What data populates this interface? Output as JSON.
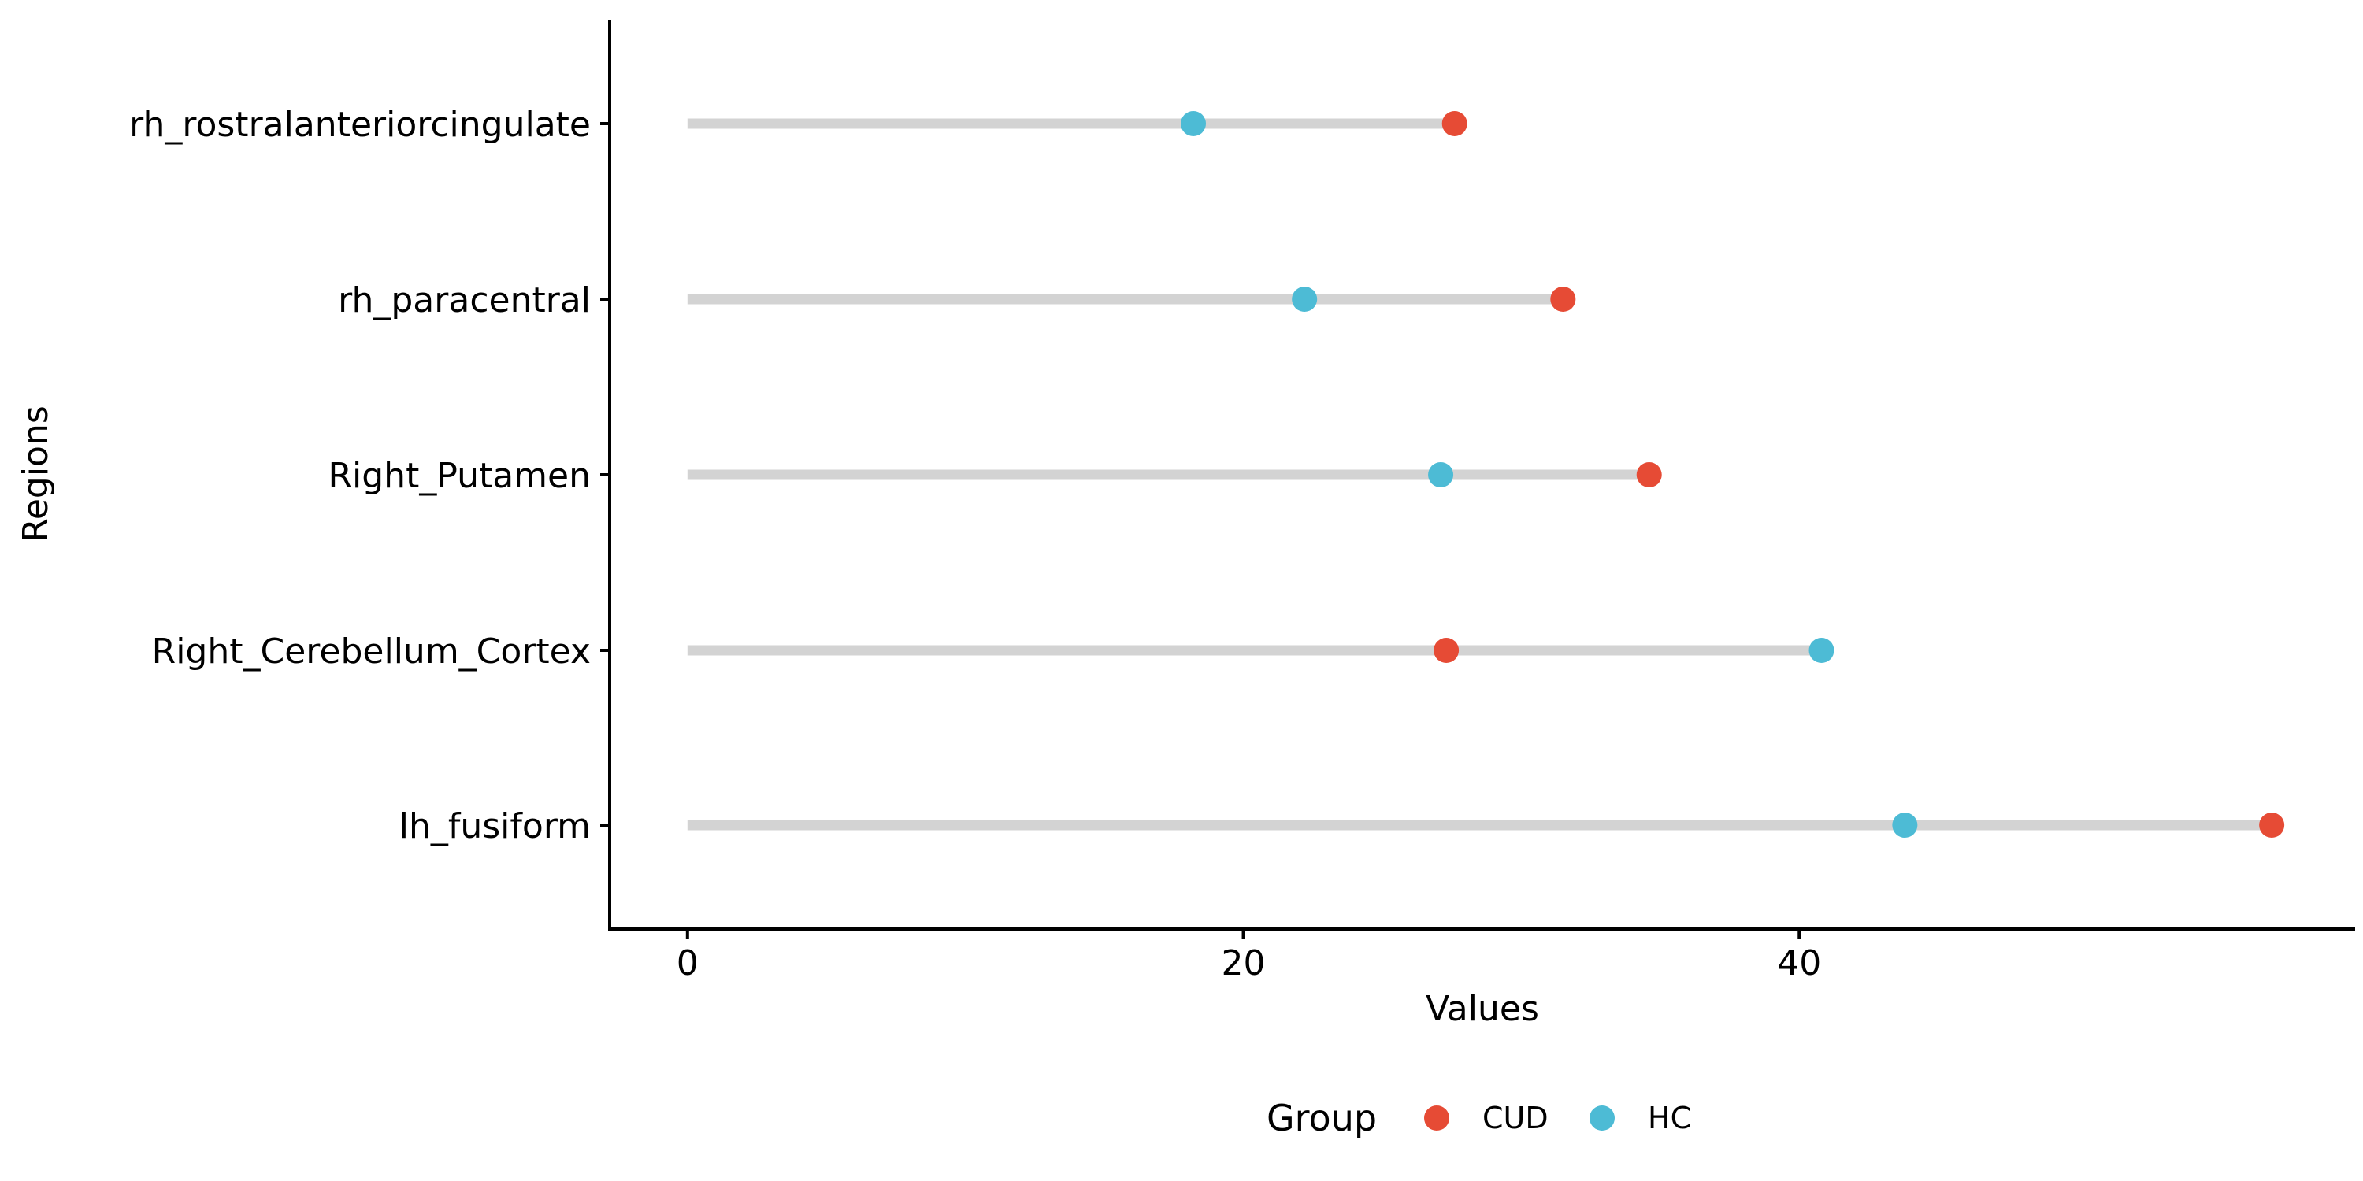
{
  "chart_data": {
    "type": "dumbbell",
    "title": "",
    "xlabel": "Values",
    "ylabel": "Regions",
    "xlim": [
      -2.8,
      60
    ],
    "x_ticks": [
      0,
      20,
      40
    ],
    "categories": [
      "rh_rostralanteriorcingulate",
      "rh_paracentral",
      "Right_Putamen",
      "Right_Cerebellum_Cortex",
      "lh_fusiform"
    ],
    "series": [
      {
        "name": "CUD",
        "color": "#E64B35",
        "values": [
          27.6,
          31.5,
          34.6,
          27.3,
          57.0
        ]
      },
      {
        "name": "HC",
        "color": "#4DBBD5",
        "values": [
          18.2,
          22.2,
          27.1,
          40.8,
          43.8
        ]
      }
    ],
    "segment_color": "#D3D3D3",
    "legend_title": "Group",
    "legend_position": "bottom",
    "grid": false
  }
}
